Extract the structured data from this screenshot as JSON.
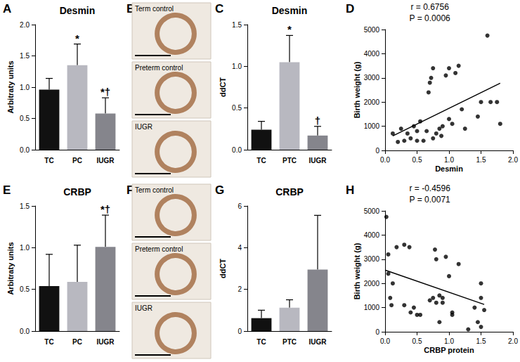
{
  "chart_data": [
    {
      "panel": "A",
      "type": "bar",
      "title": "Desmin",
      "categories": [
        "TC",
        "PC",
        "IUGR"
      ],
      "values": [
        0.96,
        1.35,
        0.58
      ],
      "errors": [
        0.18,
        0.34,
        0.25
      ],
      "annotations": [
        null,
        "*",
        "*†"
      ],
      "colors": [
        "#111111",
        "#b8b8c0",
        "#85858c"
      ],
      "ylabel": "Arbitraty units",
      "ylim": [
        0,
        2
      ],
      "yticks": [
        {
          "value": 0,
          "label": "0.0"
        },
        {
          "value": 0.5,
          "label": "0.5"
        },
        {
          "value": 1,
          "label": "1.0"
        },
        {
          "value": 1.5,
          "label": "1.5"
        },
        {
          "value": 2,
          "label": "2.0"
        }
      ],
      "grid": false
    },
    {
      "panel": "B",
      "type": "image",
      "labels": [
        "Term control",
        "Preterm control",
        "IUGR"
      ]
    },
    {
      "panel": "C",
      "type": "bar",
      "title": "Desmin",
      "categories": [
        "TC",
        "PTC",
        "IUGR"
      ],
      "values": [
        0.24,
        1.05,
        0.17
      ],
      "errors": [
        0.1,
        0.32,
        0.11
      ],
      "annotations": [
        null,
        "*",
        "†"
      ],
      "colors": [
        "#111111",
        "#b8b8c0",
        "#85858c"
      ],
      "ylabel": "ddCT",
      "ylim": [
        0,
        1.5
      ],
      "yticks": [
        {
          "value": 0,
          "label": "0.0"
        },
        {
          "value": 0.5,
          "label": "0.5"
        },
        {
          "value": 1,
          "label": "1.0"
        },
        {
          "value": 1.5,
          "label": "1.5"
        }
      ],
      "grid": false
    },
    {
      "panel": "D",
      "type": "scatter",
      "annotations": [
        "r = 0.6756",
        "P = 0.0006"
      ],
      "xlabel": "Desmin",
      "ylabel": "Birth weight (g)",
      "x": [
        0.12,
        0.2,
        0.25,
        0.3,
        0.35,
        0.4,
        0.45,
        0.5,
        0.5,
        0.55,
        0.6,
        0.65,
        0.68,
        0.7,
        0.72,
        0.75,
        0.75,
        0.8,
        0.85,
        0.88,
        0.9,
        0.95,
        1.0,
        1.0,
        1.05,
        1.1,
        1.15,
        1.2,
        1.25,
        1.45,
        1.5,
        1.6,
        1.65,
        1.75,
        1.8
      ],
      "y": [
        700,
        350,
        900,
        400,
        700,
        500,
        1000,
        400,
        800,
        1200,
        400,
        800,
        2400,
        2800,
        3000,
        3400,
        500,
        700,
        900,
        600,
        1000,
        3100,
        1300,
        3400,
        1100,
        3200,
        3500,
        1700,
        900,
        1400,
        2000,
        4750,
        2000,
        2000,
        1100
      ],
      "fit": {
        "x": [
          0.12,
          1.8
        ],
        "y": [
          600,
          2780
        ]
      },
      "color": "#000000",
      "xlim": [
        0,
        2
      ],
      "xticks": [
        {
          "value": 0,
          "label": "0.0"
        },
        {
          "value": 0.5,
          "label": "0.5"
        },
        {
          "value": 1,
          "label": "1.0"
        },
        {
          "value": 1.5,
          "label": "1.5"
        },
        {
          "value": 2,
          "label": "2.0"
        }
      ],
      "ylim": [
        0,
        5000
      ],
      "yticks": [
        0,
        1000,
        2000,
        3000,
        4000,
        5000
      ],
      "grid": false
    },
    {
      "panel": "E",
      "type": "bar",
      "title": "CRBP",
      "categories": [
        "TC",
        "PC",
        "IUGR"
      ],
      "values": [
        0.54,
        0.59,
        1.01
      ],
      "errors": [
        0.38,
        0.44,
        0.38
      ],
      "annotations": [
        null,
        null,
        "*†"
      ],
      "colors": [
        "#111111",
        "#b8b8c0",
        "#85858c"
      ],
      "ylabel": "Arbitraty units",
      "ylim": [
        0,
        1.5
      ],
      "yticks": [
        {
          "value": 0,
          "label": "0.0"
        },
        {
          "value": 0.5,
          "label": "0.5"
        },
        {
          "value": 1,
          "label": "1.0"
        },
        {
          "value": 1.5,
          "label": "1.5"
        }
      ],
      "grid": false
    },
    {
      "panel": "F",
      "type": "image",
      "labels": [
        "Term control",
        "Preterm control",
        "IUGR"
      ]
    },
    {
      "panel": "G",
      "type": "bar",
      "title": "CRBP",
      "categories": [
        "TC",
        "PTC",
        "IUGR"
      ],
      "values": [
        0.62,
        1.12,
        2.95
      ],
      "errors": [
        0.38,
        0.38,
        2.6
      ],
      "annotations": [
        null,
        null,
        null
      ],
      "colors": [
        "#111111",
        "#b8b8c0",
        "#85858c"
      ],
      "ylabel": "ddCT",
      "ylim": [
        0,
        6
      ],
      "yticks": [
        0,
        2,
        4,
        6
      ],
      "grid": false
    },
    {
      "panel": "H",
      "type": "scatter",
      "annotations": [
        "r = -0.4596",
        "P = 0.0071"
      ],
      "xlabel": "CRBP protein",
      "ylabel": "Birth weight (g)",
      "x": [
        0.02,
        0.05,
        0.05,
        0.08,
        0.1,
        0.12,
        0.18,
        0.3,
        0.38,
        0.3,
        0.4,
        0.45,
        0.5,
        0.55,
        0.7,
        0.75,
        0.78,
        0.8,
        0.8,
        0.85,
        0.9,
        0.95,
        1.0,
        1.05,
        1.05,
        1.15,
        0.85,
        0.9,
        1.3,
        1.4,
        1.45,
        1.5,
        1.5,
        1.55,
        1.5
      ],
      "y": [
        4750,
        3200,
        2400,
        1400,
        1100,
        2000,
        3500,
        3600,
        3500,
        1100,
        800,
        1000,
        700,
        700,
        1300,
        1400,
        3400,
        3000,
        1200,
        1500,
        1200,
        3100,
        2300,
        800,
        700,
        2800,
        400,
        1400,
        100,
        1000,
        400,
        2000,
        1400,
        900,
        200
      ],
      "fit": {
        "x": [
          0,
          1.55
        ],
        "y": [
          2550,
          1130
        ]
      },
      "color": "#000000",
      "xlim": [
        0,
        2
      ],
      "xticks": [
        {
          "value": 0,
          "label": "0.0"
        },
        {
          "value": 0.5,
          "label": "0.5"
        },
        {
          "value": 1,
          "label": "1.0"
        },
        {
          "value": 1.5,
          "label": "1.5"
        },
        {
          "value": 2,
          "label": "2.0"
        }
      ],
      "ylim": [
        0,
        5000
      ],
      "yticks": [
        0,
        1000,
        2000,
        3000,
        4000,
        5000
      ],
      "grid": false
    }
  ]
}
